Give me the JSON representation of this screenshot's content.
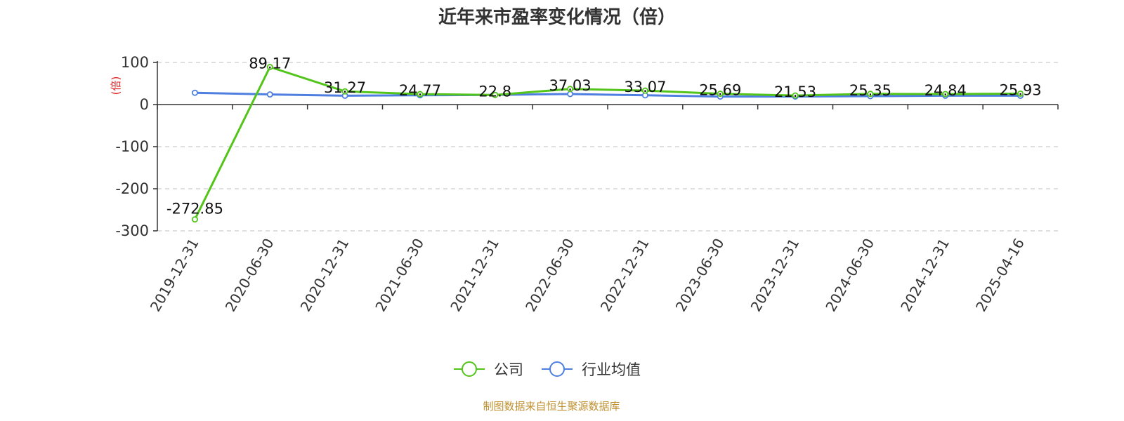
{
  "chart_data": {
    "type": "line",
    "title": "近年来市盈率变化情况（倍）",
    "ylabel": "(倍)",
    "ylim": [
      -300,
      100
    ],
    "yticks": [
      100,
      0,
      -100,
      -200,
      -300
    ],
    "categories": [
      "2019-12-31",
      "2020-06-30",
      "2020-12-31",
      "2021-06-30",
      "2021-12-31",
      "2022-06-30",
      "2022-12-31",
      "2023-06-30",
      "2023-12-31",
      "2024-06-30",
      "2024-12-31",
      "2025-04-16"
    ],
    "series": [
      {
        "name": "公司",
        "color": "#52c41a",
        "values": [
          -272.85,
          89.17,
          31.27,
          24.77,
          22.8,
          37.03,
          33.07,
          25.69,
          21.53,
          25.35,
          24.84,
          25.93
        ],
        "labels": [
          "-272.85",
          "89.17",
          "31.27",
          "24.77",
          "22.8",
          "37.03",
          "33.07",
          "25.69",
          "21.53",
          "25.35",
          "24.84",
          "25.93"
        ]
      },
      {
        "name": "行业均值",
        "color": "#4e7fe0",
        "values": [
          28,
          24,
          21,
          22,
          23,
          25,
          22,
          19,
          19,
          20,
          21,
          21
        ]
      }
    ],
    "grid": "horizontal-dashed",
    "legend": "bottom-center"
  },
  "source": "制图数据来自恒生聚源数据库",
  "colors": {
    "ylabel": "#e02020",
    "source": "#c09030",
    "axis": "#333333",
    "grid": "#cccccc"
  }
}
